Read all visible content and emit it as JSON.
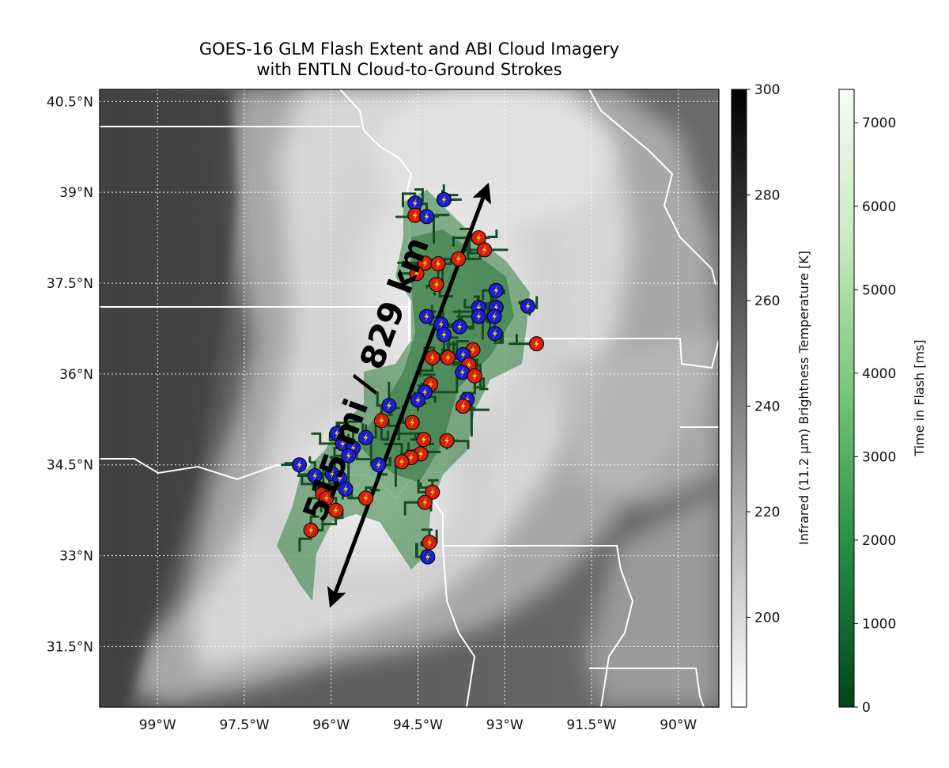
{
  "title": {
    "line1": "GOES-16 GLM Flash Extent and ABI Cloud Imagery",
    "line2": "with ENTLN Cloud-to-Ground Strokes"
  },
  "map": {
    "lon_range": [
      -100.0,
      -89.3
    ],
    "lat_range": [
      30.5,
      40.7
    ],
    "lon_ticks": [
      {
        "value": -99.0,
        "label": "99°W"
      },
      {
        "value": -97.5,
        "label": "97.5°W"
      },
      {
        "value": -96.0,
        "label": "96°W"
      },
      {
        "value": -94.5,
        "label": "94.5°W"
      },
      {
        "value": -93.0,
        "label": "93°W"
      },
      {
        "value": -91.5,
        "label": "91.5°W"
      },
      {
        "value": -90.0,
        "label": "90°W"
      }
    ],
    "lat_ticks": [
      {
        "value": 40.5,
        "label": "40.5°N"
      },
      {
        "value": 39.0,
        "label": "39°N"
      },
      {
        "value": 37.5,
        "label": "37.5°N"
      },
      {
        "value": 36.0,
        "label": "36°N"
      },
      {
        "value": 34.5,
        "label": "34.5°N"
      },
      {
        "value": 33.0,
        "label": "33°N"
      },
      {
        "value": 31.5,
        "label": "31.5°N"
      }
    ],
    "gridlines": true,
    "distance_label": "515 mi / 829 km",
    "distance_line": {
      "start": [
        -96.0,
        32.2
      ],
      "end": [
        -93.3,
        39.1
      ]
    }
  },
  "colorbar_ir": {
    "label": "Infrared (11.2 μm) Brightness Temperature [K]",
    "range": [
      183,
      300
    ],
    "ticks": [
      {
        "value": 200,
        "label": "200"
      },
      {
        "value": 220,
        "label": "220"
      },
      {
        "value": 240,
        "label": "240"
      },
      {
        "value": 260,
        "label": "260"
      },
      {
        "value": 280,
        "label": "280"
      },
      {
        "value": 300,
        "label": "300"
      }
    ],
    "colormap": [
      "#ffffff",
      "#000000"
    ]
  },
  "colorbar_flash": {
    "label": "Time in Flash [ms]",
    "range": [
      0,
      7400
    ],
    "ticks": [
      {
        "value": 0,
        "label": "0"
      },
      {
        "value": 1000,
        "label": "1000"
      },
      {
        "value": 2000,
        "label": "2000"
      },
      {
        "value": 3000,
        "label": "3000"
      },
      {
        "value": 4000,
        "label": "4000"
      },
      {
        "value": 5000,
        "label": "5000"
      },
      {
        "value": 6000,
        "label": "6000"
      },
      {
        "value": 7000,
        "label": "7000"
      }
    ],
    "colormap": [
      "#00441b",
      "#238b45",
      "#74c476",
      "#c7e9c0",
      "#f7fcf5"
    ]
  },
  "strokes_colors": {
    "positive": "#d62010",
    "negative": "#1a1fd0",
    "bolt": "#f4d21a"
  },
  "strokes": [
    {
      "lon": -94.55,
      "lat": 38.82,
      "pol": "neg"
    },
    {
      "lon": -94.05,
      "lat": 38.88,
      "pol": "neg"
    },
    {
      "lon": -94.55,
      "lat": 38.62,
      "pol": "pos"
    },
    {
      "lon": -94.35,
      "lat": 38.6,
      "pol": "neg"
    },
    {
      "lon": -93.45,
      "lat": 38.25,
      "pol": "pos"
    },
    {
      "lon": -93.35,
      "lat": 38.05,
      "pol": "pos"
    },
    {
      "lon": -94.38,
      "lat": 37.83,
      "pol": "pos"
    },
    {
      "lon": -94.15,
      "lat": 37.82,
      "pol": "pos"
    },
    {
      "lon": -93.8,
      "lat": 37.9,
      "pol": "pos"
    },
    {
      "lon": -94.52,
      "lat": 37.66,
      "pol": "pos"
    },
    {
      "lon": -94.18,
      "lat": 37.48,
      "pol": "pos"
    },
    {
      "lon": -93.15,
      "lat": 37.38,
      "pol": "neg"
    },
    {
      "lon": -92.6,
      "lat": 37.12,
      "pol": "neg"
    },
    {
      "lon": -93.45,
      "lat": 37.1,
      "pol": "neg"
    },
    {
      "lon": -93.15,
      "lat": 37.1,
      "pol": "neg"
    },
    {
      "lon": -93.45,
      "lat": 36.95,
      "pol": "neg"
    },
    {
      "lon": -93.18,
      "lat": 36.95,
      "pol": "neg"
    },
    {
      "lon": -94.35,
      "lat": 36.95,
      "pol": "neg"
    },
    {
      "lon": -94.1,
      "lat": 36.82,
      "pol": "neg"
    },
    {
      "lon": -93.78,
      "lat": 36.78,
      "pol": "neg"
    },
    {
      "lon": -94.05,
      "lat": 36.65,
      "pol": "neg"
    },
    {
      "lon": -93.17,
      "lat": 36.67,
      "pol": "neg"
    },
    {
      "lon": -92.45,
      "lat": 36.5,
      "pol": "pos"
    },
    {
      "lon": -93.55,
      "lat": 36.4,
      "pol": "pos"
    },
    {
      "lon": -94.25,
      "lat": 36.27,
      "pol": "pos"
    },
    {
      "lon": -93.98,
      "lat": 36.27,
      "pol": "pos"
    },
    {
      "lon": -93.72,
      "lat": 36.32,
      "pol": "neg"
    },
    {
      "lon": -93.62,
      "lat": 36.15,
      "pol": "pos"
    },
    {
      "lon": -93.73,
      "lat": 36.03,
      "pol": "neg"
    },
    {
      "lon": -93.52,
      "lat": 35.97,
      "pol": "pos"
    },
    {
      "lon": -94.28,
      "lat": 35.83,
      "pol": "pos"
    },
    {
      "lon": -94.38,
      "lat": 35.7,
      "pol": "neg"
    },
    {
      "lon": -94.5,
      "lat": 35.57,
      "pol": "neg"
    },
    {
      "lon": -93.65,
      "lat": 35.58,
      "pol": "neg"
    },
    {
      "lon": -93.72,
      "lat": 35.47,
      "pol": "pos"
    },
    {
      "lon": -95.0,
      "lat": 35.48,
      "pol": "neg"
    },
    {
      "lon": -95.13,
      "lat": 35.23,
      "pol": "pos"
    },
    {
      "lon": -94.6,
      "lat": 35.2,
      "pol": "pos"
    },
    {
      "lon": -95.9,
      "lat": 35.02,
      "pol": "neg"
    },
    {
      "lon": -95.4,
      "lat": 34.95,
      "pol": "neg"
    },
    {
      "lon": -94.4,
      "lat": 34.92,
      "pol": "pos"
    },
    {
      "lon": -94.0,
      "lat": 34.9,
      "pol": "pos"
    },
    {
      "lon": -95.8,
      "lat": 34.85,
      "pol": "neg"
    },
    {
      "lon": -95.62,
      "lat": 34.78,
      "pol": "neg"
    },
    {
      "lon": -95.7,
      "lat": 34.65,
      "pol": "neg"
    },
    {
      "lon": -94.45,
      "lat": 34.68,
      "pol": "pos"
    },
    {
      "lon": -94.62,
      "lat": 34.62,
      "pol": "pos"
    },
    {
      "lon": -94.78,
      "lat": 34.55,
      "pol": "pos"
    },
    {
      "lon": -95.18,
      "lat": 34.5,
      "pol": "neg"
    },
    {
      "lon": -96.55,
      "lat": 34.5,
      "pol": "neg"
    },
    {
      "lon": -96.28,
      "lat": 34.32,
      "pol": "neg"
    },
    {
      "lon": -95.98,
      "lat": 34.35,
      "pol": "neg"
    },
    {
      "lon": -95.85,
      "lat": 34.28,
      "pol": "neg"
    },
    {
      "lon": -95.75,
      "lat": 34.1,
      "pol": "neg"
    },
    {
      "lon": -96.15,
      "lat": 34.02,
      "pol": "pos"
    },
    {
      "lon": -96.08,
      "lat": 33.95,
      "pol": "pos"
    },
    {
      "lon": -95.4,
      "lat": 33.95,
      "pol": "pos"
    },
    {
      "lon": -94.25,
      "lat": 34.05,
      "pol": "pos"
    },
    {
      "lon": -94.38,
      "lat": 33.88,
      "pol": "pos"
    },
    {
      "lon": -95.92,
      "lat": 33.75,
      "pol": "pos"
    },
    {
      "lon": -96.35,
      "lat": 33.42,
      "pol": "pos"
    },
    {
      "lon": -94.3,
      "lat": 33.22,
      "pol": "pos"
    },
    {
      "lon": -94.33,
      "lat": 32.98,
      "pol": "neg"
    }
  ]
}
